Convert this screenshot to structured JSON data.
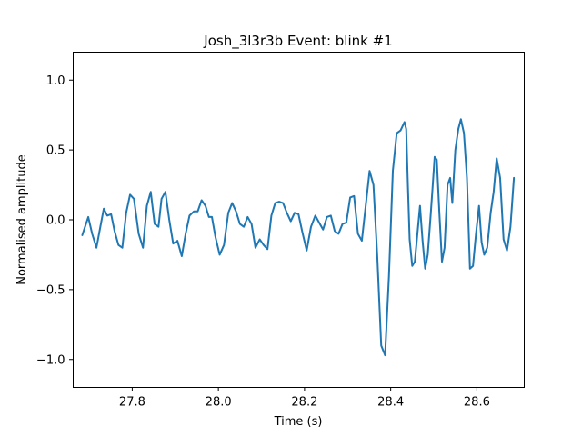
{
  "chart_data": {
    "type": "line",
    "title": "Josh_3l3r3b Event: blink #1",
    "xlabel": "Time (s)",
    "ylabel": "Normalised amplitude",
    "xlim": [
      27.663,
      28.71
    ],
    "ylim": [
      -1.2,
      1.2
    ],
    "x_ticks": [
      27.8,
      28.0,
      28.2,
      28.4,
      28.6
    ],
    "x_tick_labels": [
      "27.8",
      "28.0",
      "28.2",
      "28.4",
      "28.6"
    ],
    "y_ticks": [
      1.0,
      0.5,
      0.0,
      -0.5,
      -1.0
    ],
    "y_tick_labels": [
      "1.0",
      "0.5",
      "0.0",
      "−0.5",
      "−1.0"
    ],
    "grid": false,
    "series": [
      {
        "color": "#1f77b4",
        "x": [
          27.684,
          27.698,
          27.707,
          27.717,
          27.726,
          27.734,
          27.742,
          27.751,
          27.759,
          27.768,
          27.777,
          27.786,
          27.795,
          27.804,
          27.815,
          27.825,
          27.834,
          27.843,
          27.852,
          27.861,
          27.868,
          27.877,
          27.886,
          27.895,
          27.905,
          27.915,
          27.924,
          27.933,
          27.943,
          27.952,
          27.961,
          27.97,
          27.978,
          27.985,
          27.993,
          28.003,
          28.013,
          28.023,
          28.032,
          28.041,
          28.05,
          28.059,
          28.068,
          28.077,
          28.086,
          28.096,
          28.105,
          28.114,
          28.123,
          28.132,
          28.141,
          28.15,
          28.159,
          28.168,
          28.177,
          28.186,
          28.195,
          28.205,
          28.215,
          28.225,
          28.234,
          28.243,
          28.252,
          28.261,
          28.27,
          28.279,
          28.288,
          28.297,
          28.306,
          28.315,
          28.324,
          28.333,
          28.342,
          28.351,
          28.36,
          28.369,
          28.378,
          28.387,
          28.396,
          28.405,
          28.414,
          28.423,
          28.432,
          28.436,
          28.44,
          28.444,
          28.45,
          28.456,
          28.462,
          28.468,
          28.474,
          28.48,
          28.486,
          28.492,
          28.497,
          28.502,
          28.507,
          28.513,
          28.519,
          28.525,
          28.532,
          28.538,
          28.543,
          28.55,
          28.557,
          28.563,
          28.57,
          28.577,
          28.584,
          28.591,
          28.598,
          28.605,
          28.611,
          28.617,
          28.624,
          28.632,
          28.639,
          28.646,
          28.654,
          28.662,
          28.67,
          28.678,
          28.686
        ],
        "y": [
          -0.11,
          0.02,
          -0.1,
          -0.2,
          -0.05,
          0.08,
          0.03,
          0.04,
          -0.08,
          -0.18,
          -0.2,
          0.05,
          0.18,
          0.15,
          -0.1,
          -0.2,
          0.1,
          0.2,
          -0.03,
          -0.05,
          0.15,
          0.2,
          0.0,
          -0.17,
          -0.15,
          -0.26,
          -0.1,
          0.03,
          0.06,
          0.06,
          0.14,
          0.1,
          0.02,
          0.02,
          -0.12,
          -0.25,
          -0.18,
          0.05,
          0.12,
          0.06,
          -0.03,
          -0.05,
          0.02,
          -0.03,
          -0.2,
          -0.14,
          -0.18,
          -0.21,
          0.03,
          0.12,
          0.13,
          0.12,
          0.05,
          -0.01,
          0.05,
          0.04,
          -0.09,
          -0.22,
          -0.05,
          0.03,
          -0.02,
          -0.07,
          0.02,
          0.03,
          -0.08,
          -0.1,
          -0.03,
          -0.02,
          0.16,
          0.17,
          -0.1,
          -0.15,
          0.1,
          0.35,
          0.25,
          -0.27,
          -0.9,
          -0.97,
          -0.4,
          0.35,
          0.62,
          0.64,
          0.7,
          0.65,
          0.24,
          -0.14,
          -0.33,
          -0.3,
          -0.1,
          0.1,
          -0.15,
          -0.35,
          -0.25,
          0.0,
          0.22,
          0.45,
          0.43,
          0.05,
          -0.3,
          -0.2,
          0.25,
          0.3,
          0.12,
          0.5,
          0.65,
          0.72,
          0.62,
          0.3,
          -0.35,
          -0.33,
          -0.1,
          0.1,
          -0.16,
          -0.25,
          -0.2,
          0.05,
          0.2,
          0.44,
          0.3,
          -0.14,
          -0.22,
          -0.05,
          0.3
        ]
      }
    ]
  }
}
